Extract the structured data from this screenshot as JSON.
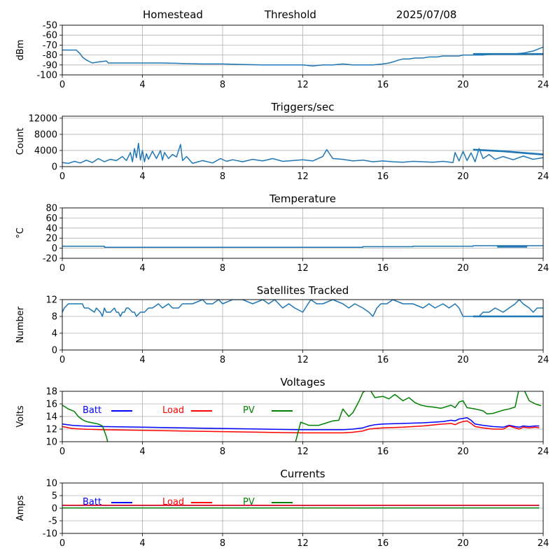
{
  "header": {
    "station": "Homestead",
    "mode": "Threshold",
    "date": "2025/07/08"
  },
  "x_axis": {
    "ticks": [
      0,
      4,
      8,
      12,
      16,
      20,
      24
    ],
    "range": [
      0,
      24
    ]
  },
  "colors": {
    "series_default": "#1f77b4",
    "batt": "#0000ff",
    "load": "#ff0000",
    "pv": "#008000",
    "grid": "#b0b0b0"
  },
  "chart_data": [
    {
      "id": "signal",
      "type": "line",
      "title": "",
      "ylabel": "dBm",
      "ylim": [
        -100,
        -50
      ],
      "yticks": [
        -100,
        -90,
        -80,
        -70,
        -60,
        -50
      ],
      "grid": true,
      "series": [
        {
          "x": [
            0,
            0.7,
            0.9,
            1.0,
            1.2,
            1.5,
            1.8,
            2.2,
            2.3,
            2.8,
            4,
            5,
            6,
            7,
            8,
            9,
            10,
            11,
            12,
            12.5,
            13,
            13.5,
            14,
            14.5,
            15,
            15.5,
            16,
            16.3,
            16.5,
            16.8,
            17.0,
            17.3,
            17.6,
            18,
            18.3,
            18.7,
            19,
            19.5,
            19.8,
            20,
            20.5,
            21,
            21.5,
            22,
            22.5,
            23,
            23.5,
            24
          ],
          "y": [
            -75,
            -75,
            -79,
            -82,
            -85,
            -88,
            -87,
            -86,
            -88,
            -88,
            -88,
            -88,
            -88.5,
            -89,
            -89,
            -89.5,
            -90,
            -90,
            -90,
            -91,
            -90,
            -90,
            -89,
            -90,
            -90,
            -90,
            -89,
            -88,
            -87,
            -85,
            -84,
            -84,
            -83,
            -83,
            -82,
            -82,
            -81,
            -81,
            -81,
            -80,
            -80,
            -80,
            -79,
            -79,
            -79,
            -78,
            -76,
            -72
          ]
        },
        {
          "x": [
            20.5,
            24
          ],
          "y": [
            -79,
            -79
          ]
        }
      ]
    },
    {
      "id": "triggers",
      "type": "line",
      "title": "Triggers/sec",
      "ylabel": "Count",
      "ylim": [
        0,
        12500
      ],
      "yticks": [
        0,
        4000,
        8000,
        12000
      ],
      "grid": true,
      "series": [
        {
          "x": [
            0,
            0.3,
            0.6,
            0.9,
            1.2,
            1.5,
            1.8,
            2.1,
            2.4,
            2.7,
            3.0,
            3.2,
            3.4,
            3.5,
            3.6,
            3.7,
            3.8,
            3.9,
            4.0,
            4.1,
            4.2,
            4.3,
            4.5,
            4.7,
            4.9,
            5.0,
            5.1,
            5.3,
            5.5,
            5.7,
            5.9,
            6.0,
            6.2,
            6.5,
            7,
            7.5,
            7.9,
            8.2,
            8.5,
            9,
            9.5,
            10,
            10.5,
            11,
            11.5,
            12,
            12.5,
            13,
            13.2,
            13.5,
            14,
            14.5,
            15,
            15.5,
            16,
            16.5,
            17,
            17.5,
            18,
            18.5,
            19,
            19.5,
            19.6,
            19.8,
            20,
            20.2,
            20.4,
            20.6,
            20.8,
            21,
            21.3,
            21.6,
            22,
            22.5,
            23,
            23.5,
            24
          ],
          "y": [
            1000,
            800,
            1300,
            900,
            1600,
            1000,
            2000,
            1200,
            1800,
            1500,
            2500,
            1500,
            3500,
            1200,
            4500,
            2200,
            5800,
            1600,
            4000,
            1200,
            3200,
            1800,
            3800,
            2000,
            4000,
            1600,
            3500,
            2000,
            3000,
            2400,
            5500,
            1500,
            2500,
            800,
            1500,
            900,
            2000,
            1300,
            1700,
            1200,
            1800,
            1400,
            2000,
            1300,
            1500,
            1700,
            1400,
            2500,
            4200,
            2000,
            1800,
            1400,
            1600,
            1200,
            1400,
            1200,
            1100,
            1300,
            1200,
            1100,
            1300,
            1000,
            3500,
            1400,
            3800,
            1500,
            3400,
            1200,
            4500,
            2000,
            3000,
            1800,
            2500,
            1700,
            2600,
            1800,
            2200
          ]
        },
        {
          "x": [
            20.5,
            22,
            24
          ],
          "y": [
            4200,
            3800,
            3000
          ]
        }
      ]
    },
    {
      "id": "temperature",
      "type": "line",
      "title": "Temperature",
      "ylabel": "°C",
      "ylim": [
        -20,
        80
      ],
      "yticks": [
        -20,
        0,
        20,
        40,
        60,
        80
      ],
      "grid": true,
      "series": [
        {
          "x": [
            0,
            2.1,
            2.1,
            15,
            15,
            17.5,
            17.5,
            20.5,
            20.5,
            24
          ],
          "y": [
            4,
            4,
            2,
            2,
            3,
            3,
            4,
            4,
            5,
            5
          ]
        },
        {
          "x": [
            21.7,
            23.2
          ],
          "y": [
            3,
            3
          ]
        }
      ]
    },
    {
      "id": "satellites",
      "type": "line",
      "title": "Satellites Tracked",
      "ylabel": "Number",
      "ylim": [
        0,
        12
      ],
      "yticks": [
        0,
        4,
        8,
        12
      ],
      "grid": true,
      "series": [
        {
          "x": [
            0,
            0.1,
            0.3,
            1.0,
            1.1,
            1.3,
            1.6,
            1.7,
            1.9,
            2.0,
            2.1,
            2.2,
            2.4,
            2.6,
            2.7,
            2.8,
            2.9,
            3.0,
            3.1,
            3.2,
            3.3,
            3.5,
            3.6,
            3.7,
            3.9,
            4.1,
            4.3,
            4.5,
            4.8,
            5.0,
            5.3,
            5.5,
            5.8,
            6.0,
            6.5,
            7.0,
            7.2,
            7.5,
            7.8,
            8.0,
            8.5,
            9.0,
            9.5,
            10.0,
            10.3,
            10.6,
            11.0,
            11.3,
            11.6,
            12.0,
            12.4,
            12.7,
            13.0,
            13.5,
            14.0,
            14.3,
            14.6,
            15.0,
            15.3,
            15.5,
            15.7,
            15.9,
            16.2,
            16.5,
            17.0,
            17.5,
            18.0,
            18.3,
            18.6,
            19.0,
            19.3,
            19.6,
            19.8,
            19.9,
            20.0,
            20.5,
            20.8,
            21.0,
            21.3,
            21.6,
            22.0,
            22.3,
            22.6,
            22.8,
            23.0,
            23.3,
            23.5,
            23.7,
            24
          ],
          "y": [
            9,
            10,
            11,
            11,
            10,
            10,
            9,
            10,
            9,
            8,
            10,
            9,
            9,
            10,
            9,
            9,
            8,
            9,
            9,
            10,
            10,
            9,
            9,
            8,
            9,
            9,
            10,
            10,
            11,
            10,
            11,
            10,
            10,
            11,
            11,
            12,
            11,
            11,
            12,
            11,
            12,
            12,
            11,
            12,
            11,
            12,
            10,
            11,
            10,
            9,
            12,
            11,
            11,
            12,
            11,
            10,
            11,
            10,
            9,
            8,
            10,
            11,
            11,
            12,
            11,
            11,
            10,
            11,
            10,
            11,
            10,
            11,
            10,
            9,
            8,
            8,
            8,
            9,
            9,
            10,
            9,
            10,
            11,
            12,
            11,
            10,
            9,
            10,
            10
          ]
        },
        {
          "x": [
            20.5,
            24
          ],
          "y": [
            8,
            8
          ]
        }
      ]
    },
    {
      "id": "voltages",
      "type": "line",
      "title": "Voltages",
      "ylabel": "Volts",
      "ylim": [
        10,
        18
      ],
      "yticks": [
        10,
        12,
        14,
        16,
        18
      ],
      "grid": true,
      "legend": [
        "Batt",
        "Load",
        "PV"
      ],
      "series": [
        {
          "name": "Batt",
          "color": "#0000ff",
          "x": [
            0,
            0.5,
            1,
            2,
            4,
            6,
            8,
            10,
            12,
            13,
            14,
            14.5,
            15,
            15.3,
            15.6,
            16,
            17,
            18,
            19,
            19.4,
            19.6,
            19.8,
            20,
            20.2,
            20.4,
            20.6,
            21,
            21.5,
            22,
            22.3,
            22.6,
            22.8,
            23,
            23.3,
            23.6,
            23.8
          ],
          "y": [
            12.8,
            12.6,
            12.5,
            12.4,
            12.3,
            12.2,
            12.1,
            12.0,
            11.9,
            11.9,
            11.9,
            12.0,
            12.2,
            12.5,
            12.7,
            12.8,
            12.9,
            13.0,
            13.2,
            13.4,
            13.3,
            13.6,
            13.7,
            13.8,
            13.4,
            12.8,
            12.6,
            12.4,
            12.3,
            12.6,
            12.4,
            12.3,
            12.5,
            12.4,
            12.5,
            12.5
          ]
        },
        {
          "name": "Load",
          "color": "#ff0000",
          "x": [
            0,
            0.5,
            1,
            2,
            4,
            6,
            8,
            10,
            12,
            13,
            14,
            14.5,
            15,
            15.3,
            15.6,
            16,
            17,
            18,
            19,
            19.4,
            19.6,
            19.8,
            20,
            20.2,
            20.4,
            20.6,
            21,
            21.5,
            22,
            22.3,
            22.6,
            22.8,
            23,
            23.3,
            23.6,
            23.8
          ],
          "y": [
            12.4,
            12.1,
            12.0,
            11.9,
            11.8,
            11.7,
            11.6,
            11.5,
            11.4,
            11.4,
            11.4,
            11.5,
            11.7,
            12.0,
            12.1,
            12.2,
            12.3,
            12.5,
            12.8,
            12.9,
            12.7,
            13.0,
            13.2,
            13.3,
            12.9,
            12.4,
            12.2,
            12.0,
            12.0,
            12.5,
            12.2,
            12.0,
            12.3,
            12.2,
            12.3,
            12.2
          ]
        },
        {
          "name": "PV",
          "color": "#008000",
          "x": [
            0,
            0.3,
            0.6,
            0.8,
            1.0,
            1.2,
            1.5,
            1.8,
            2.0,
            2.2,
            2.3,
            11.6,
            11.9,
            12.3,
            12.8,
            13.2,
            13.5,
            13.8,
            14.0,
            14.3,
            14.5,
            14.8,
            15.0,
            15.3,
            15.6,
            16.0,
            16.3,
            16.6,
            17.0,
            17.3,
            17.6,
            17.9,
            18.2,
            18.5,
            18.9,
            19.2,
            19.4,
            19.6,
            19.8,
            20.0,
            20.2,
            20.4,
            20.6,
            21.0,
            21.2,
            21.5,
            21.8,
            22.0,
            22.3,
            22.6,
            22.8,
            23.0,
            23.3,
            23.6,
            23.9
          ],
          "y": [
            15.8,
            15.2,
            14.8,
            14.0,
            13.5,
            13.2,
            13.0,
            12.8,
            12.5,
            10.8,
            9.5,
            9.5,
            13.1,
            12.6,
            12.6,
            13.0,
            13.3,
            13.4,
            15.2,
            14.0,
            14.6,
            16.4,
            17.8,
            18.5,
            17.0,
            17.2,
            16.8,
            17.5,
            16.5,
            17.0,
            16.2,
            15.8,
            15.6,
            15.5,
            15.3,
            15.6,
            15.8,
            15.4,
            16.3,
            16.5,
            15.4,
            15.3,
            15.2,
            14.9,
            14.4,
            14.5,
            14.8,
            15.0,
            15.2,
            15.5,
            18.5,
            18.5,
            16.5,
            16.0,
            15.7
          ]
        }
      ]
    },
    {
      "id": "currents",
      "type": "line",
      "title": "Currents",
      "ylabel": "Amps",
      "ylim": [
        -10,
        10
      ],
      "yticks": [
        -10,
        -5,
        0,
        5,
        10
      ],
      "grid": true,
      "legend": [
        "Batt",
        "Load",
        "PV"
      ],
      "series": [
        {
          "name": "Batt",
          "color": "#0000ff",
          "x": [
            0,
            23.8
          ],
          "y": [
            1.1,
            1.1
          ]
        },
        {
          "name": "Load",
          "color": "#ff0000",
          "x": [
            0,
            6,
            12,
            18,
            23.8
          ],
          "y": [
            1.2,
            1.2,
            1.1,
            1.2,
            1.2
          ]
        },
        {
          "name": "PV",
          "color": "#008000",
          "x": [
            0,
            23.8
          ],
          "y": [
            0.1,
            0.1
          ]
        }
      ]
    }
  ]
}
